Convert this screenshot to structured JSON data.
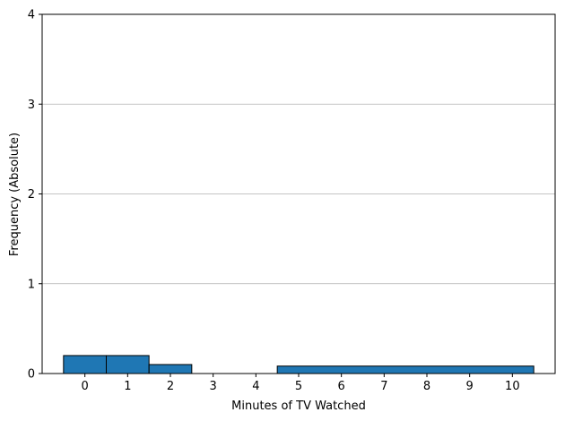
{
  "chart_data": {
    "type": "bar",
    "title": "",
    "xlabel": "Minutes of TV Watched",
    "ylabel": "Frequency (Absolute)",
    "xlim": [
      -1,
      11
    ],
    "ylim": [
      0,
      4
    ],
    "xticks": [
      0,
      1,
      2,
      3,
      4,
      5,
      6,
      7,
      8,
      9,
      10
    ],
    "yticks": [
      0,
      1,
      2,
      3,
      4
    ],
    "grid": "y-major",
    "bins": [
      {
        "start": -0.5,
        "end": 0.5,
        "value": 0.2
      },
      {
        "start": 0.5,
        "end": 1.5,
        "value": 0.2
      },
      {
        "start": 1.5,
        "end": 2.5,
        "value": 0.1
      },
      {
        "start": 4.5,
        "end": 10.5,
        "value": 0.083
      }
    ],
    "colors": {
      "bar_fill": "#1f77b4",
      "bar_edge": "#000000",
      "grid": "#b0b0b0"
    }
  }
}
